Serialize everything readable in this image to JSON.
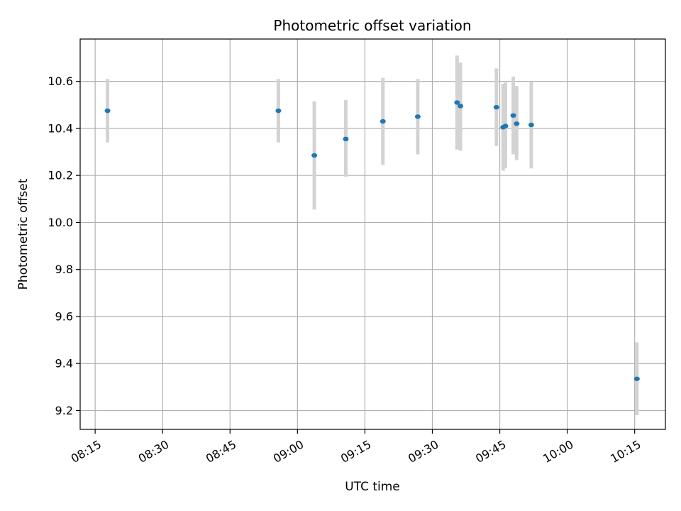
{
  "chart_data": {
    "type": "scatter",
    "title": "Photometric offset variation",
    "xlabel": "UTC time",
    "ylabel": "Photometric offset",
    "x_tick_labels": [
      "08:15",
      "08:30",
      "08:45",
      "09:00",
      "09:15",
      "09:30",
      "09:45",
      "10:00",
      "10:15"
    ],
    "x_ticks": [
      "08:15",
      "08:30",
      "08:45",
      "09:00",
      "09:15",
      "09:30",
      "09:45",
      "10:00",
      "10:15"
    ],
    "xlim": [
      "08:11:40",
      "10:21:50"
    ],
    "y_ticks": [
      9.2,
      9.4,
      9.6,
      9.8,
      10.0,
      10.2,
      10.4,
      10.6
    ],
    "y_tick_labels": [
      "9.2",
      "9.4",
      "9.6",
      "9.8",
      "10.0",
      "10.2",
      "10.4",
      "10.6"
    ],
    "ylim": [
      9.12,
      10.78
    ],
    "grid": true,
    "point_color": "#1f77b4",
    "errorbar_color": "#d3d3d3",
    "points": [
      {
        "x": "08:17:45",
        "y": 10.475,
        "y_low": 10.34,
        "y_high": 10.61
      },
      {
        "x": "08:55:45",
        "y": 10.475,
        "y_low": 10.34,
        "y_high": 10.61
      },
      {
        "x": "09:03:45",
        "y": 10.285,
        "y_low": 10.055,
        "y_high": 10.515
      },
      {
        "x": "09:10:45",
        "y": 10.355,
        "y_low": 10.195,
        "y_high": 10.52
      },
      {
        "x": "09:19:00",
        "y": 10.43,
        "y_low": 10.245,
        "y_high": 10.615
      },
      {
        "x": "09:26:45",
        "y": 10.45,
        "y_low": 10.29,
        "y_high": 10.61
      },
      {
        "x": "09:35:30",
        "y": 10.51,
        "y_low": 10.31,
        "y_high": 10.71
      },
      {
        "x": "09:36:15",
        "y": 10.495,
        "y_low": 10.305,
        "y_high": 10.68
      },
      {
        "x": "09:44:15",
        "y": 10.49,
        "y_low": 10.325,
        "y_high": 10.655
      },
      {
        "x": "09:45:45",
        "y": 10.405,
        "y_low": 10.22,
        "y_high": 10.59
      },
      {
        "x": "09:46:15",
        "y": 10.41,
        "y_low": 10.23,
        "y_high": 10.595
      },
      {
        "x": "09:48:00",
        "y": 10.455,
        "y_low": 10.29,
        "y_high": 10.62
      },
      {
        "x": "09:48:45",
        "y": 10.42,
        "y_low": 10.265,
        "y_high": 10.58
      },
      {
        "x": "09:52:00",
        "y": 10.415,
        "y_low": 10.23,
        "y_high": 10.6
      },
      {
        "x": "10:15:30",
        "y": 9.335,
        "y_low": 9.18,
        "y_high": 9.49
      }
    ]
  }
}
